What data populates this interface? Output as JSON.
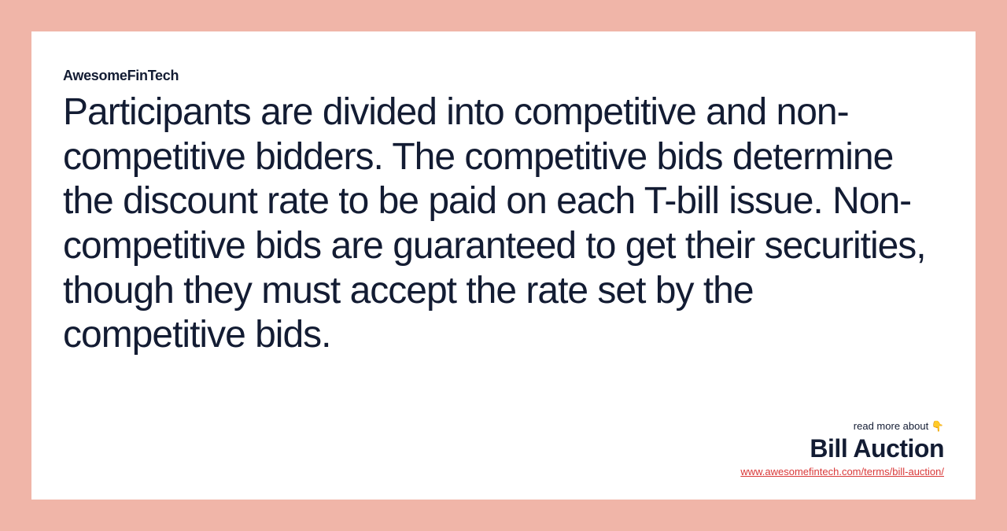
{
  "card": {
    "brand": "AwesomeFinTech",
    "body": "Participants are divided into competitive and non-competitive bidders. The competitive bids determine the discount rate to be paid on each T-bill issue. Non-competitive bids are guaranteed to get their securities, though they must accept the rate set by the competitive bids.",
    "footer": {
      "read_more": "read more about 👇",
      "title": "Bill Auction",
      "url": "www.awesomefintech.com/terms/bill-auction/"
    }
  },
  "colors": {
    "page_bg": "#f0b5a8",
    "card_bg": "#ffffff",
    "text": "#131c33",
    "link": "#d93838"
  }
}
